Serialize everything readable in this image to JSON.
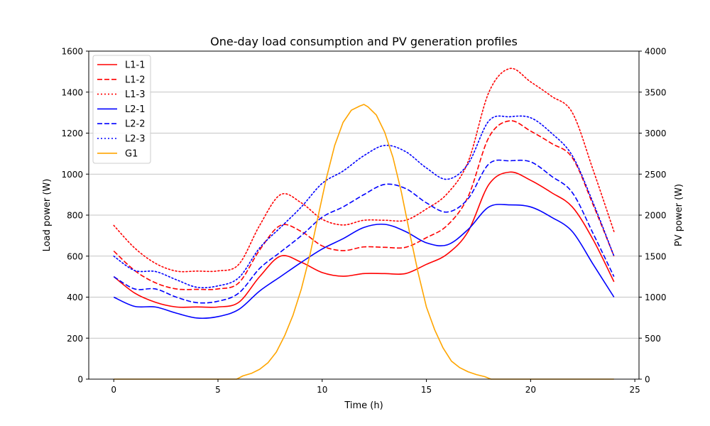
{
  "chart_data": {
    "type": "line",
    "title": "One-day load consumption and PV generation profiles",
    "xlabel": "Time (h)",
    "ylabel_left": "Load power (W)",
    "ylabel_right": "PV power (W)",
    "xlim": [
      -1.2,
      25.2
    ],
    "ylim_left": [
      0,
      1600
    ],
    "ylim_right": [
      0,
      4000
    ],
    "xticks": [
      0,
      5,
      10,
      15,
      20,
      25
    ],
    "yticks_left": [
      0,
      200,
      400,
      600,
      800,
      1000,
      1200,
      1400,
      1600
    ],
    "yticks_right": [
      0,
      500,
      1000,
      1500,
      2000,
      2500,
      3000,
      3500,
      4000
    ],
    "grid": "horizontal",
    "legend_position": "top-left",
    "x": [
      0,
      1,
      2,
      3,
      4,
      5,
      6,
      7,
      8,
      9,
      10,
      11,
      12,
      13,
      14,
      15,
      16,
      17,
      18,
      19,
      20,
      21,
      22,
      23,
      24
    ],
    "series": [
      {
        "name": "L1-1",
        "axis": "left",
        "color": "#ff0000",
        "style": "solid",
        "values": [
          500,
          420,
          375,
          352,
          352,
          352,
          375,
          500,
          600,
          570,
          520,
          502,
          515,
          515,
          515,
          560,
          610,
          720,
          950,
          1010,
          970,
          910,
          840,
          680,
          475
        ]
      },
      {
        "name": "L1-2",
        "axis": "left",
        "color": "#ff0000",
        "style": "dashed",
        "values": [
          625,
          530,
          470,
          440,
          438,
          440,
          470,
          630,
          750,
          720,
          650,
          627,
          645,
          643,
          643,
          690,
          750,
          890,
          1180,
          1260,
          1210,
          1150,
          1080,
          850,
          600
        ]
      },
      {
        "name": "L1-3",
        "axis": "left",
        "color": "#ff0000",
        "style": "dotted",
        "values": [
          750,
          640,
          565,
          527,
          527,
          528,
          560,
          750,
          900,
          860,
          780,
          752,
          775,
          775,
          775,
          830,
          905,
          1060,
          1400,
          1515,
          1450,
          1380,
          1300,
          1020,
          720
        ]
      },
      {
        "name": "L2-1",
        "axis": "left",
        "color": "#0000ff",
        "style": "solid",
        "values": [
          400,
          355,
          352,
          322,
          298,
          305,
          340,
          430,
          500,
          570,
          635,
          685,
          740,
          755,
          720,
          665,
          655,
          730,
          840,
          850,
          840,
          790,
          720,
          560,
          400
        ]
      },
      {
        "name": "L2-2",
        "axis": "left",
        "color": "#0000ff",
        "style": "dashed",
        "values": [
          500,
          440,
          440,
          400,
          373,
          380,
          420,
          540,
          620,
          700,
          790,
          840,
          900,
          950,
          930,
          860,
          815,
          880,
          1050,
          1065,
          1060,
          990,
          910,
          710,
          500
        ]
      },
      {
        "name": "L2-3",
        "axis": "left",
        "color": "#0000ff",
        "style": "dotted",
        "values": [
          600,
          530,
          525,
          485,
          448,
          455,
          495,
          640,
          740,
          840,
          955,
          1015,
          1090,
          1140,
          1110,
          1030,
          975,
          1050,
          1260,
          1280,
          1275,
          1200,
          1090,
          860,
          600
        ]
      },
      {
        "name": "G1",
        "axis": "right",
        "color": "#ffa500",
        "style": "solid",
        "x": [
          0,
          5.9,
          6.2,
          6.6,
          7,
          7.4,
          7.8,
          8.2,
          8.6,
          9,
          9.4,
          9.8,
          10.2,
          10.6,
          11,
          11.4,
          11.8,
          12.0,
          12.2,
          12.6,
          13,
          13.4,
          13.8,
          14.2,
          14.6,
          15,
          15.4,
          15.8,
          16.2,
          16.6,
          17,
          17.4,
          17.8,
          18.0,
          18.1,
          24
        ],
        "values": [
          0,
          0,
          40,
          70,
          120,
          200,
          330,
          530,
          780,
          1100,
          1500,
          1980,
          2450,
          2850,
          3130,
          3280,
          3330,
          3350,
          3320,
          3220,
          3010,
          2700,
          2280,
          1780,
          1300,
          880,
          600,
          380,
          220,
          140,
          90,
          55,
          30,
          10,
          0,
          0
        ]
      }
    ]
  }
}
